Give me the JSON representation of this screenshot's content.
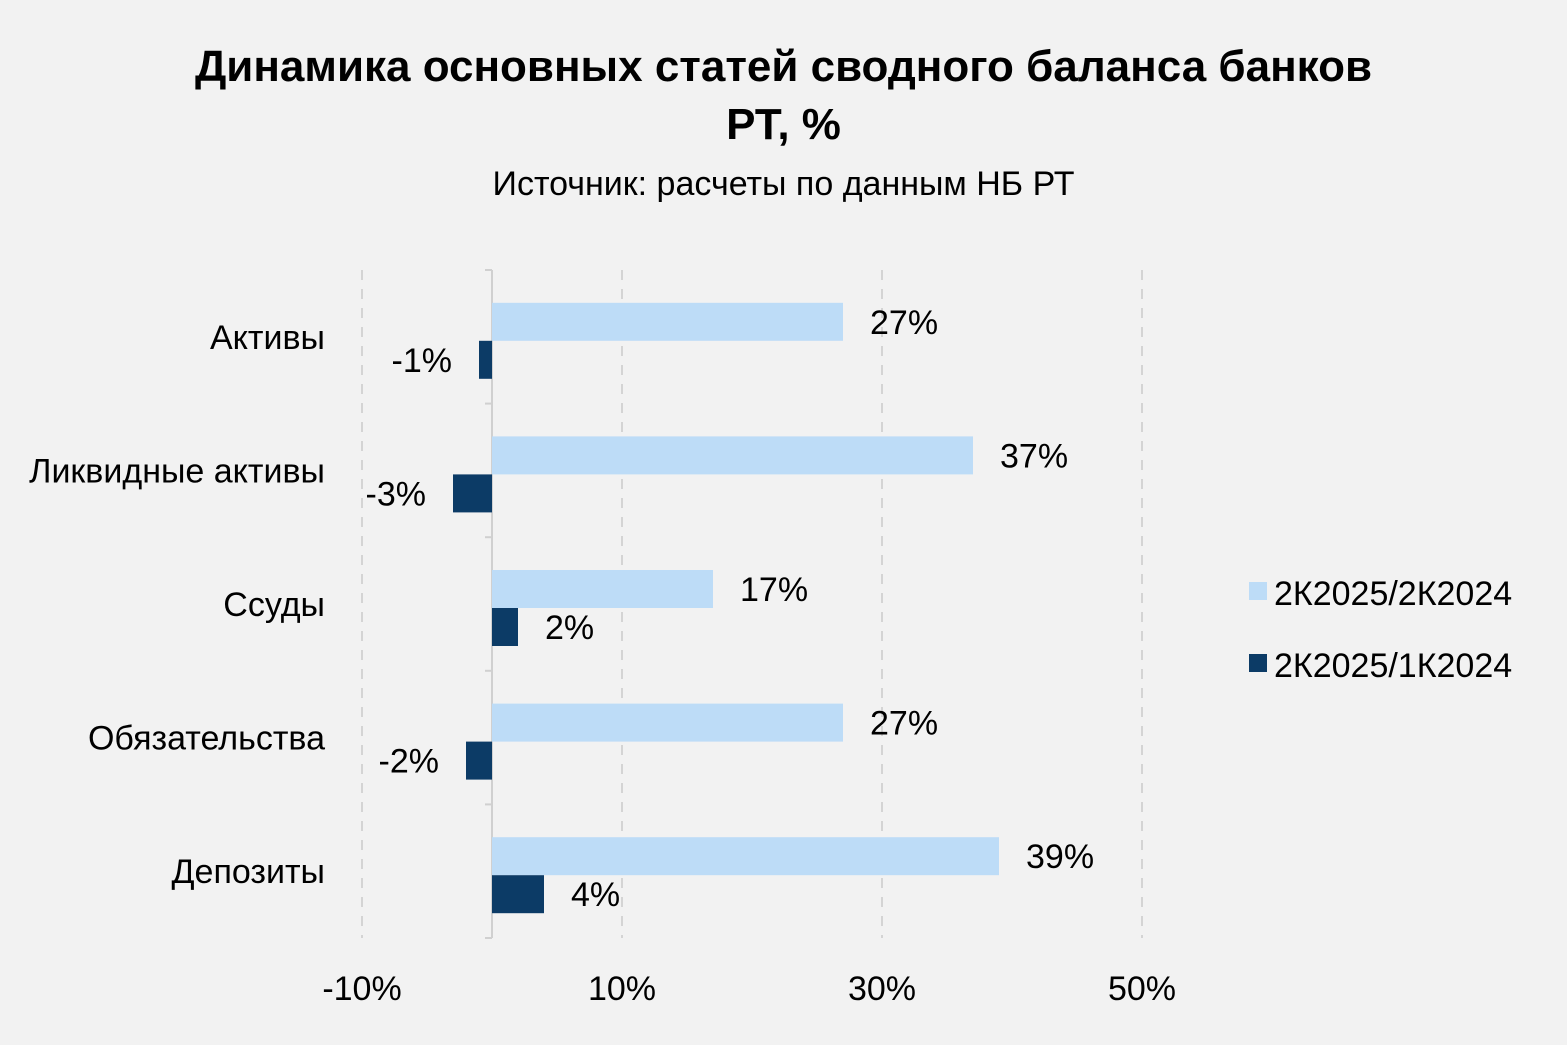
{
  "chart_data": {
    "type": "bar",
    "orientation": "horizontal",
    "title_lines": [
      "Динамика основных статей сводного баланса банков",
      "РТ, %"
    ],
    "subtitle": "Источник: расчеты по данным НБ РТ",
    "categories": [
      "Активы",
      "Ликвидные активы",
      "Ссуды",
      "Обязательства",
      "Депозиты"
    ],
    "series": [
      {
        "name": "2К2025/2К2024",
        "color": "#bddcf7",
        "values": [
          27,
          37,
          17,
          27,
          39
        ],
        "labels": [
          "27%",
          "37%",
          "17%",
          "27%",
          "39%"
        ]
      },
      {
        "name": "2К2025/1К2024",
        "color": "#0c3b66",
        "values": [
          -1,
          -3,
          2,
          -2,
          4
        ],
        "labels": [
          "-1%",
          "-3%",
          "2%",
          "-2%",
          "4%"
        ]
      }
    ],
    "xlim": [
      -10,
      50
    ],
    "xticks": [
      -10,
      10,
      30,
      50
    ],
    "xtick_labels": [
      "-10%",
      "10%",
      "30%",
      "50%"
    ],
    "grid": "vertical dashed",
    "legend_position": "right"
  }
}
